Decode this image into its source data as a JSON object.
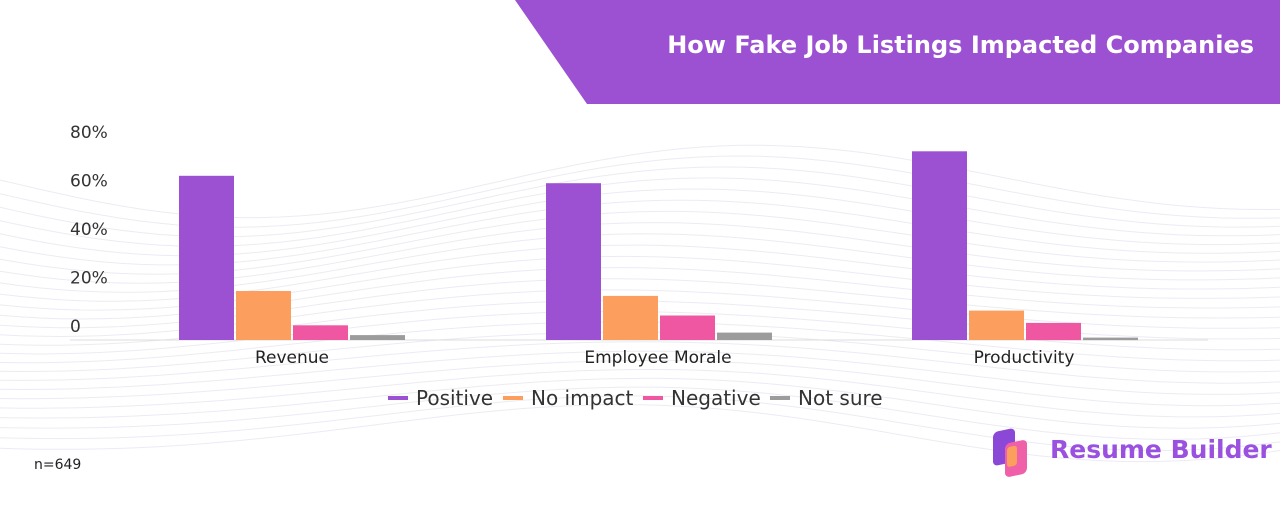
{
  "title": "How Fake Job Listings Impacted Companies",
  "sample_note": "n=649",
  "brand": {
    "name": "Resume Builder",
    "icon": "resume-builder-logo-icon"
  },
  "colors": {
    "banner": "#9b51d1",
    "positive": "#9b51d1",
    "no_impact": "#fb9e5e",
    "negative": "#ef57a3",
    "not_sure": "#9c9c9c"
  },
  "chart_data": {
    "type": "bar",
    "categories": [
      "Revenue",
      "Employee Morale",
      "Productivity"
    ],
    "series": [
      {
        "name": "Positive",
        "values": [
          67,
          64,
          77
        ]
      },
      {
        "name": "No impact",
        "values": [
          20,
          18,
          12
        ]
      },
      {
        "name": "Negative",
        "values": [
          6,
          10,
          7
        ]
      },
      {
        "name": "Not sure",
        "values": [
          2,
          3,
          1
        ]
      }
    ],
    "y_ticks": [
      "80%",
      "60%",
      "40%",
      "20%",
      "0"
    ],
    "ylim": [
      0,
      85
    ],
    "legend_position": "bottom-center",
    "grid": false
  }
}
